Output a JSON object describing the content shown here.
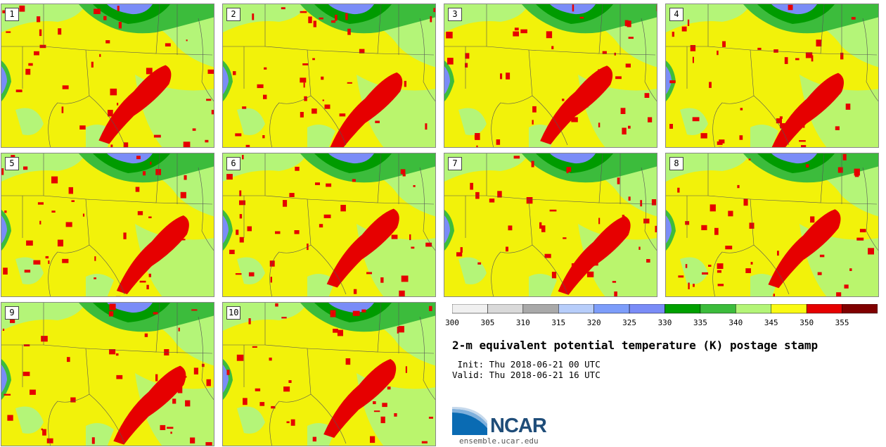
{
  "title": "2-m equivalent potential temperature (K) postage stamp",
  "init_label": "Init: Thu 2018-06-21 00 UTC",
  "valid_label": "Valid: Thu 2018-06-21 16 UTC",
  "members": [
    "1",
    "2",
    "3",
    "4",
    "5",
    "6",
    "7",
    "8",
    "9",
    "10"
  ],
  "colorbar": {
    "tick_labels": [
      "300",
      "305",
      "310",
      "315",
      "320",
      "325",
      "330",
      "335",
      "340",
      "345",
      "350",
      "355"
    ],
    "colors": [
      "#f0f0f0",
      "#d9d9d9",
      "#a9a9a9",
      "#b7cdfa",
      "#7d9dfa",
      "#7a8cf7",
      "#00a000",
      "#3cbc3c",
      "#b4f578",
      "#fafa14",
      "#e60000",
      "#800000"
    ]
  },
  "map_colors": {
    "base": "#f2f20a",
    "light_green": "#b4f578",
    "green": "#3cbc3c",
    "dark_green": "#009b00",
    "blue": "#7a8cf7",
    "red": "#e60000",
    "border": "#555555"
  },
  "logo": {
    "text": "NCAR",
    "url": "ensemble.ucar.edu",
    "icon": "ncar-swoosh-icon"
  }
}
